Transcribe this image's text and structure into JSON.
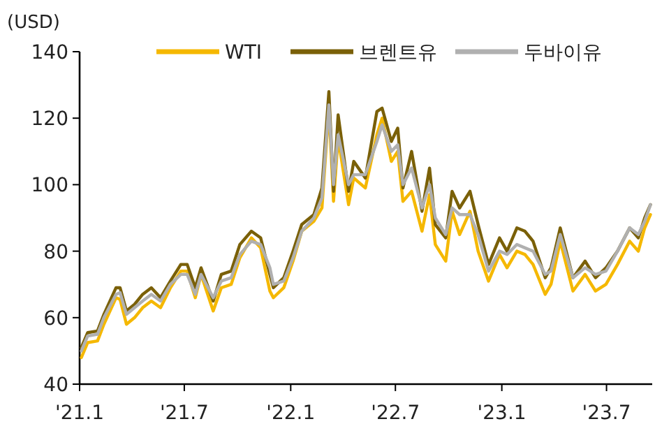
{
  "chart_data": {
    "type": "line",
    "ylabel": "(USD)",
    "ylim": [
      40,
      140
    ],
    "yticks": [
      40,
      60,
      80,
      100,
      120,
      140
    ],
    "xlim": [
      "2021-01-01",
      "2023-09-18"
    ],
    "xticks": [
      {
        "value": "2021-01-01",
        "label": "'21.1"
      },
      {
        "value": "2021-07-01",
        "label": "'21.7"
      },
      {
        "value": "2022-01-01",
        "label": "'22.1"
      },
      {
        "value": "2022-07-01",
        "label": "'22.7"
      },
      {
        "value": "2023-01-01",
        "label": "'23.1"
      },
      {
        "value": "2023-07-01",
        "label": "'23.7"
      }
    ],
    "grid": false,
    "legend": "top",
    "marker": "none",
    "line_style": "solid",
    "x": [
      "2021-01-04",
      "2021-01-15",
      "2021-02-01",
      "2021-02-12",
      "2021-03-05",
      "2021-03-12",
      "2021-03-23",
      "2021-04-06",
      "2021-04-20",
      "2021-05-05",
      "2021-05-21",
      "2021-06-07",
      "2021-06-25",
      "2021-07-06",
      "2021-07-20",
      "2021-07-30",
      "2021-08-20",
      "2021-09-03",
      "2021-09-20",
      "2021-10-05",
      "2021-10-25",
      "2021-11-10",
      "2021-11-26",
      "2021-12-02",
      "2021-12-20",
      "2022-01-05",
      "2022-01-20",
      "2022-02-10",
      "2022-02-24",
      "2022-03-08",
      "2022-03-16",
      "2022-03-24",
      "2022-04-11",
      "2022-04-20",
      "2022-05-10",
      "2022-05-30",
      "2022-06-08",
      "2022-06-24",
      "2022-07-05",
      "2022-07-14",
      "2022-07-29",
      "2022-08-16",
      "2022-08-29",
      "2022-09-08",
      "2022-09-26",
      "2022-10-07",
      "2022-10-20",
      "2022-11-07",
      "2022-11-21",
      "2022-12-09",
      "2022-12-28",
      "2023-01-10",
      "2023-01-27",
      "2023-02-10",
      "2023-02-24",
      "2023-03-17",
      "2023-03-27",
      "2023-04-12",
      "2023-05-04",
      "2023-05-25",
      "2023-06-12",
      "2023-06-30",
      "2023-07-20",
      "2023-08-10",
      "2023-08-25",
      "2023-09-05",
      "2023-09-15"
    ],
    "series": [
      {
        "name": "WTI",
        "color": "#f5b800",
        "values": [
          48,
          52.5,
          53,
          58,
          66,
          65.5,
          58,
          60,
          63,
          65,
          63,
          69,
          74,
          74,
          66,
          73,
          62,
          69,
          70,
          78,
          84,
          81,
          68,
          66,
          69,
          77,
          86,
          89,
          93,
          123,
          95,
          114,
          94,
          102,
          99,
          115,
          120,
          107,
          110,
          95,
          98,
          86,
          97,
          82,
          77,
          92,
          85,
          92,
          80,
          71,
          79,
          75,
          80,
          79,
          76,
          67,
          70,
          83,
          68,
          73,
          68,
          70,
          76,
          83,
          80,
          87,
          91
        ]
      },
      {
        "name": "브렌트유",
        "color": "#7a6008",
        "values": [
          51,
          55.5,
          56,
          61,
          69,
          69,
          62,
          64,
          67,
          69,
          66,
          71,
          76,
          76,
          69,
          75,
          65,
          73,
          74,
          82,
          86,
          84,
          73,
          69,
          72,
          80,
          88,
          91,
          99,
          128,
          98,
          121,
          98,
          107,
          102,
          122,
          123,
          113,
          117,
          99,
          110,
          92,
          105,
          88,
          84,
          98,
          93,
          98,
          88,
          76,
          84,
          80,
          87,
          86,
          83,
          72,
          75,
          87,
          72,
          77,
          72,
          75,
          80,
          87,
          84,
          90,
          94
        ]
      },
      {
        "name": "두바이유",
        "color": "#b0b0b0",
        "values": [
          50,
          54.5,
          55,
          60,
          67,
          67.5,
          61,
          63,
          65,
          67,
          65,
          70,
          73,
          73,
          67,
          73,
          66,
          71,
          72,
          79,
          83,
          82,
          75,
          70,
          71,
          78,
          86,
          90,
          96,
          124,
          100,
          115,
          100,
          103,
          103,
          113,
          118,
          110,
          112,
          100,
          105,
          93,
          100,
          90,
          85,
          93,
          91,
          91,
          85,
          74,
          80,
          79,
          82,
          81,
          80,
          73,
          74,
          85,
          72,
          75,
          73,
          74,
          80,
          87,
          85,
          89,
          94
        ]
      }
    ]
  }
}
